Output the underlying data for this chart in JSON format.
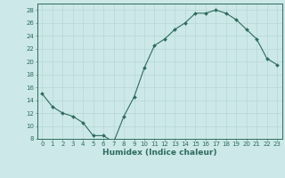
{
  "x": [
    0,
    1,
    2,
    3,
    4,
    5,
    6,
    7,
    8,
    9,
    10,
    11,
    12,
    13,
    14,
    15,
    16,
    17,
    18,
    19,
    20,
    21,
    22,
    23
  ],
  "y": [
    15,
    13,
    12,
    11.5,
    10.5,
    8.5,
    8.5,
    7.5,
    11.5,
    14.5,
    19,
    22.5,
    23.5,
    25,
    26,
    27.5,
    27.5,
    28,
    27.5,
    26.5,
    25,
    23.5,
    20.5,
    19.5
  ],
  "line_color": "#2e6b5e",
  "marker": "D",
  "marker_size": 2.0,
  "bg_color": "#cce8e8",
  "grid_color": "#b8d8d8",
  "xlabel": "Humidex (Indice chaleur)",
  "ylim": [
    8,
    29
  ],
  "xlim": [
    -0.5,
    23.5
  ],
  "yticks": [
    8,
    10,
    12,
    14,
    16,
    18,
    20,
    22,
    24,
    26,
    28
  ],
  "xticks": [
    0,
    1,
    2,
    3,
    4,
    5,
    6,
    7,
    8,
    9,
    10,
    11,
    12,
    13,
    14,
    15,
    16,
    17,
    18,
    19,
    20,
    21,
    22,
    23
  ],
  "tick_label_fontsize": 5.0,
  "xlabel_fontsize": 6.5,
  "spine_color": "#2e6b5e",
  "tick_color": "#2e6b5e",
  "label_color": "#2e6b5e"
}
